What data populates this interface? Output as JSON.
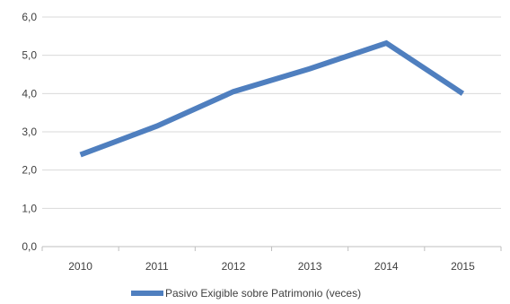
{
  "chart_data": {
    "type": "line",
    "categories": [
      "2010",
      "2011",
      "2012",
      "2013",
      "2014",
      "2015"
    ],
    "series": [
      {
        "name": "Pasivo Exigible sobre Patrimonio (veces)",
        "values": [
          2.4,
          3.15,
          4.05,
          4.65,
          5.32,
          4.0
        ],
        "color": "#4F7FBF"
      }
    ],
    "ylim": [
      0,
      6
    ],
    "yticks": [
      "0,0",
      "1,0",
      "2,0",
      "3,0",
      "4,0",
      "5,0",
      "6,0"
    ],
    "grid": true,
    "legend": "bottom"
  }
}
